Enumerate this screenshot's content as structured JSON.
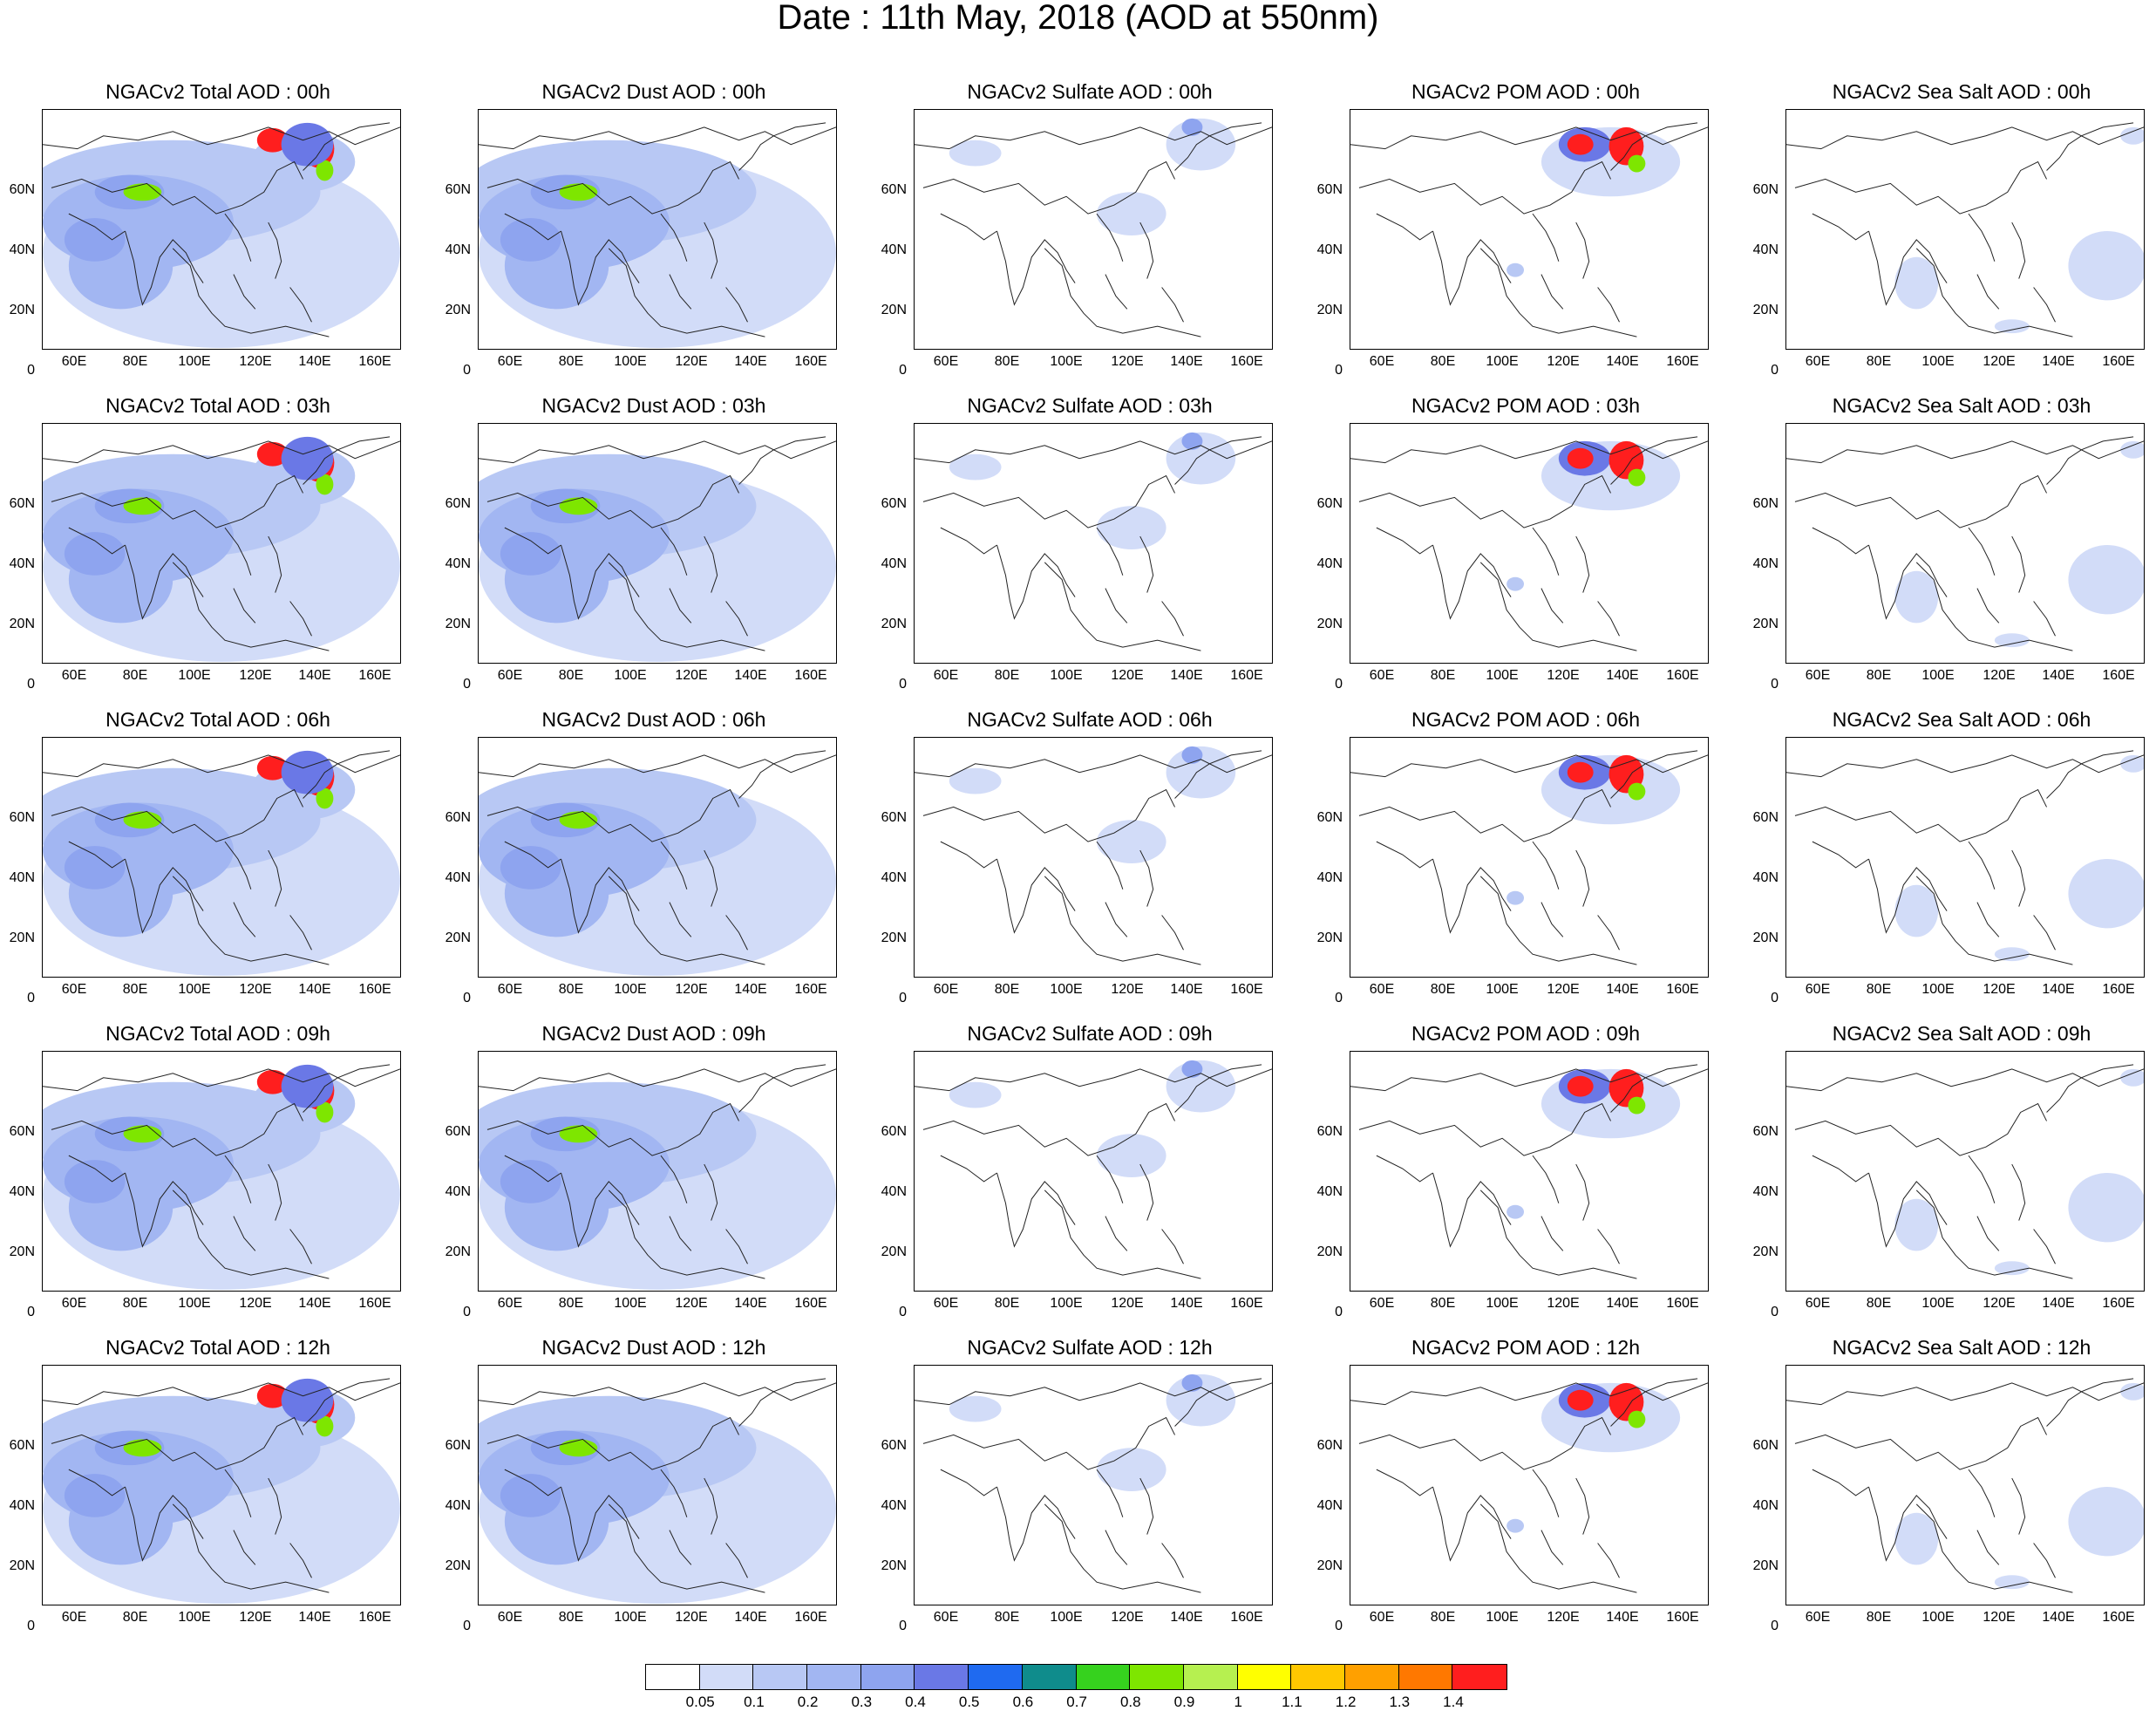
{
  "title": "Date : 11th May, 2018 (AOD at 550nm)",
  "lat_ticks": [
    "60N",
    "40N",
    "20N",
    "0"
  ],
  "lon_ticks": [
    "60E",
    "80E",
    "100E",
    "120E",
    "140E",
    "160E"
  ],
  "panel_titles": [
    [
      "NGACv2 Total AOD : 00h",
      "NGACv2 Dust AOD : 00h",
      "NGACv2 Sulfate AOD : 00h",
      "NGACv2 POM AOD : 00h",
      "NGACv2 Sea Salt AOD : 00h"
    ],
    [
      "NGACv2 Total AOD : 03h",
      "NGACv2 Dust AOD : 03h",
      "NGACv2 Sulfate AOD : 03h",
      "NGACv2 POM AOD : 03h",
      "NGACv2 Sea Salt AOD : 03h"
    ],
    [
      "NGACv2 Total AOD : 06h",
      "NGACv2 Dust AOD : 06h",
      "NGACv2 Sulfate AOD : 06h",
      "NGACv2 POM AOD : 06h",
      "NGACv2 Sea Salt AOD : 06h"
    ],
    [
      "NGACv2 Total AOD : 09h",
      "NGACv2 Dust AOD : 09h",
      "NGACv2 Sulfate AOD : 09h",
      "NGACv2 POM AOD : 09h",
      "NGACv2 Sea Salt  AOD : 09h"
    ],
    [
      "NGACv2 Total AOD  : 12h",
      "NGACv2 Dust AOD : 12h",
      "NGACv2 Sulfate AOD : 12h",
      "NGACv2 POM  AOD : 12h",
      "NGACv2 Sea Salt  AOD : 12h"
    ]
  ],
  "colorbar": {
    "labels": [
      "0.05",
      "0.1",
      "0.2",
      "0.3",
      "0.4",
      "0.5",
      "0.6",
      "0.7",
      "0.8",
      "0.9",
      "1",
      "1.1",
      "1.2",
      "1.3",
      "1.4"
    ],
    "colors": [
      "#ffffff",
      "#d2dcf8",
      "#b8c8f4",
      "#a2b6f2",
      "#8ea4ef",
      "#6a78e6",
      "#1f6af0",
      "#0f8c8c",
      "#36d21e",
      "#7ee600",
      "#b6f050",
      "#ffff00",
      "#ffc800",
      "#ffa000",
      "#ff7800",
      "#ff1e1e"
    ]
  }
}
